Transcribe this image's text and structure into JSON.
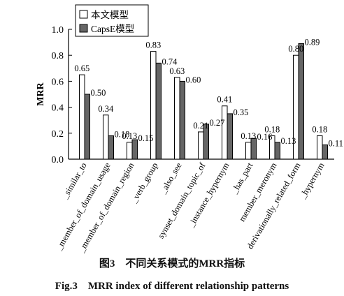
{
  "chart_data": {
    "type": "bar",
    "categories": [
      "_similar_to",
      "_member_of_domain_usage",
      "_member_of_domain_region",
      "_verb_group",
      "_also_see",
      "synset_domain_topic_of",
      "_instance_hypernym",
      "_has_part",
      "member_meronym",
      "derivationally_related_form",
      "_hypernym"
    ],
    "series": [
      {
        "name": "本文模型",
        "values": [
          0.65,
          0.34,
          0.13,
          0.83,
          0.63,
          0.21,
          0.41,
          0.13,
          0.18,
          0.8,
          0.18
        ],
        "labels": [
          "0.65",
          "0.34",
          "0.13",
          "0.83",
          "0.63",
          "0.21",
          "0.41",
          "0.13",
          "0.18",
          "0.80",
          "0.18"
        ],
        "color": "#ffffff"
      },
      {
        "name": "CapsE模型",
        "values": [
          0.5,
          0.18,
          0.15,
          0.74,
          0.6,
          0.27,
          0.35,
          0.16,
          0.13,
          0.89,
          0.11
        ],
        "labels": [
          "0.50",
          "0.18",
          "0.15",
          "0.74",
          "0.60",
          "0.27",
          "0.35",
          "0.16",
          "0.13",
          "0.89",
          "0.11"
        ],
        "color": "#666666"
      }
    ],
    "ylabel": "MRR",
    "ylim": [
      0.0,
      1.0
    ],
    "yticks": [
      "0.0",
      "0.2",
      "0.4",
      "0.6",
      "0.8",
      "1.0"
    ],
    "ytick_values": [
      0.0,
      0.2,
      0.4,
      0.6,
      0.8,
      1.0
    ],
    "grid": false,
    "legend": "top-left"
  },
  "caption": {
    "cn": "图3　不同关系模式的MRR指标",
    "en": "Fig.3　MRR index of different relationship patterns"
  }
}
